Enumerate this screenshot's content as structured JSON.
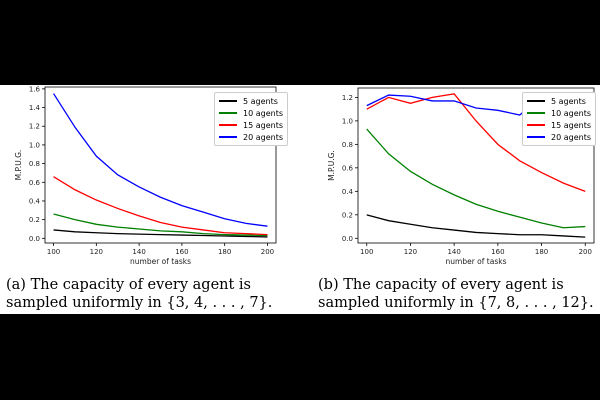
{
  "charts": [
    {
      "caption": "(a) The capacity of every agent is sampled uniformly in {3, 4, . . . , 7}.",
      "chart_data": {
        "type": "line",
        "xlabel": "number of tasks",
        "ylabel": "M.P.U.G.",
        "x": [
          100,
          110,
          120,
          130,
          140,
          150,
          160,
          170,
          180,
          190,
          200
        ],
        "xlim": [
          96,
          204
        ],
        "ylim": [
          -0.05,
          1.62
        ],
        "xticks": [
          "100",
          "120",
          "140",
          "160",
          "180",
          "200"
        ],
        "yticks": [
          "0.0",
          "0.2",
          "0.4",
          "0.6",
          "0.8",
          "1.0",
          "1.2",
          "1.4",
          "1.6"
        ],
        "legend_position": "top-right",
        "grid": false,
        "series": [
          {
            "name": "5 agents",
            "color": "#000000",
            "values": [
              0.09,
              0.07,
              0.06,
              0.05,
              0.045,
              0.04,
              0.035,
              0.03,
              0.025,
              0.02,
              0.015
            ]
          },
          {
            "name": "10 agents",
            "color": "#008000",
            "values": [
              0.26,
              0.2,
              0.15,
              0.12,
              0.1,
              0.08,
              0.07,
              0.05,
              0.04,
              0.035,
              0.03
            ]
          },
          {
            "name": "15 agents",
            "color": "#ff0000",
            "values": [
              0.66,
              0.52,
              0.41,
              0.32,
              0.24,
              0.17,
              0.12,
              0.09,
              0.06,
              0.05,
              0.04
            ]
          },
          {
            "name": "20 agents",
            "color": "#0000ff",
            "values": [
              1.55,
              1.19,
              0.88,
              0.68,
              0.55,
              0.44,
              0.35,
              0.28,
              0.21,
              0.16,
              0.13
            ]
          }
        ]
      }
    },
    {
      "caption": "(b) The capacity of every agent is sampled uniformly in {7, 8, . . . , 12}.",
      "chart_data": {
        "type": "line",
        "xlabel": "number of tasks",
        "ylabel": "M.P.U.G.",
        "x": [
          100,
          110,
          120,
          130,
          140,
          150,
          160,
          170,
          180,
          190,
          200
        ],
        "xlim": [
          96,
          204
        ],
        "ylim": [
          -0.04,
          1.28
        ],
        "xticks": [
          "100",
          "120",
          "140",
          "160",
          "180",
          "200"
        ],
        "yticks": [
          "0.0",
          "0.2",
          "0.4",
          "0.6",
          "0.8",
          "1.0",
          "1.2"
        ],
        "legend_position": "top-right",
        "grid": false,
        "series": [
          {
            "name": "5 agents",
            "color": "#000000",
            "values": [
              0.2,
              0.15,
              0.12,
              0.09,
              0.07,
              0.05,
              0.04,
              0.03,
              0.03,
              0.02,
              0.01
            ]
          },
          {
            "name": "10 agents",
            "color": "#008000",
            "values": [
              0.93,
              0.72,
              0.57,
              0.46,
              0.37,
              0.29,
              0.23,
              0.18,
              0.13,
              0.09,
              0.1
            ]
          },
          {
            "name": "15 agents",
            "color": "#ff0000",
            "values": [
              1.1,
              1.2,
              1.15,
              1.2,
              1.23,
              1.0,
              0.8,
              0.66,
              0.56,
              0.47,
              0.4
            ]
          },
          {
            "name": "20 agents",
            "color": "#0000ff",
            "values": [
              1.13,
              1.22,
              1.21,
              1.17,
              1.17,
              1.11,
              1.09,
              1.05,
              1.2,
              1.18,
              1.16
            ]
          }
        ]
      }
    }
  ]
}
